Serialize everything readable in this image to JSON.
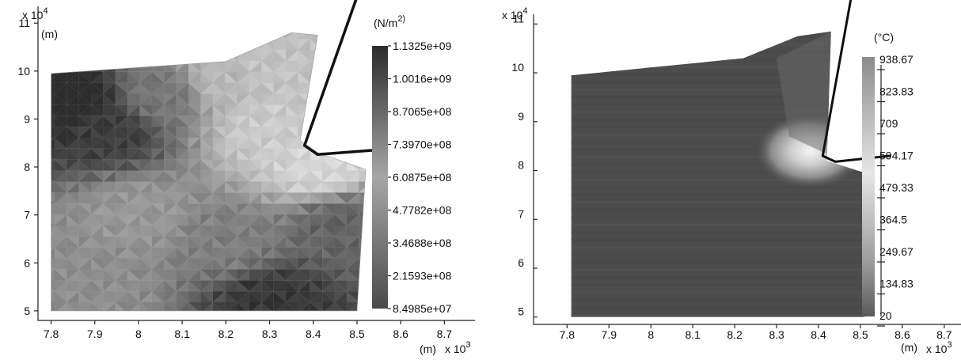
{
  "chart_data": [
    {
      "type": "heatmap",
      "panel": "left",
      "xlabel": "(m)",
      "x_multiplier": "x 10^3",
      "ylabel": "(m)",
      "y_multiplier": "x 10^4",
      "xlim": [
        7.77,
        8.77
      ],
      "ylim": [
        4.8,
        11.35
      ],
      "x_ticks": [
        "7.8",
        "7.9",
        "8",
        "8.1",
        "8.2",
        "8.3",
        "8.4",
        "8.5",
        "8.6",
        "8.7"
      ],
      "y_ticks": [
        "5",
        "6",
        "7",
        "8",
        "9",
        "10",
        "11"
      ],
      "colorbar": {
        "unit": "(N/m^2)",
        "min": 84985000,
        "max": 1132500000,
        "labels": [
          "1.1325e+09",
          "1.0016e+09",
          "8.7065e+08",
          "7.3970e+08",
          "6.0875e+08",
          "4.7782e+08",
          "3.4688e+08",
          "2.1593e+08",
          "8.4985e+07"
        ]
      },
      "workpiece_outline": [
        [
          7.8,
          5.0
        ],
        [
          8.5,
          5.0
        ],
        [
          8.52,
          7.95
        ],
        [
          8.41,
          8.3
        ],
        [
          8.37,
          8.55
        ],
        [
          8.41,
          10.75
        ],
        [
          8.35,
          10.8
        ],
        [
          8.2,
          10.2
        ],
        [
          7.8,
          9.95
        ]
      ],
      "tool_outline": [
        [
          8.5,
          11.55
        ],
        [
          8.38,
          8.45
        ],
        [
          8.41,
          8.26
        ],
        [
          8.54,
          8.35
        ]
      ],
      "field_samples": [
        {
          "x": 7.85,
          "y": 9.4,
          "v": 1.05
        },
        {
          "x": 7.93,
          "y": 8.8,
          "v": 0.92
        },
        {
          "x": 8.05,
          "y": 9.5,
          "v": 0.62
        },
        {
          "x": 8.2,
          "y": 9.8,
          "v": 0.28
        },
        {
          "x": 8.3,
          "y": 9.9,
          "v": 0.22
        },
        {
          "x": 8.3,
          "y": 8.8,
          "v": 0.18
        },
        {
          "x": 8.42,
          "y": 8.0,
          "v": 0.12
        },
        {
          "x": 8.0,
          "y": 7.0,
          "v": 0.45
        },
        {
          "x": 8.2,
          "y": 6.4,
          "v": 0.58
        },
        {
          "x": 8.3,
          "y": 5.2,
          "v": 0.95
        },
        {
          "x": 8.47,
          "y": 6.8,
          "v": 0.72
        },
        {
          "x": 7.9,
          "y": 5.6,
          "v": 0.5
        }
      ]
    },
    {
      "type": "heatmap",
      "panel": "right",
      "xlabel": "(m)",
      "x_multiplier": "x 10^3",
      "y_multiplier": "x 10^4",
      "xlim": [
        7.72,
        8.74
      ],
      "ylim": [
        4.85,
        11.2
      ],
      "x_ticks": [
        "7.8",
        "7.9",
        "8",
        "8.1",
        "8.2",
        "8.3",
        "8.4",
        "8.5",
        "8.6",
        "8.7"
      ],
      "y_ticks": [
        "5",
        "6",
        "7",
        "8",
        "9",
        "10",
        "11"
      ],
      "colorbar": {
        "unit": "(°C)",
        "min": 20,
        "max": 938.67,
        "labels": [
          "938.67",
          "823.83",
          "709",
          "594.17",
          "479.33",
          "364.5",
          "249.67",
          "134.83",
          "20"
        ]
      },
      "workpiece_outline": [
        [
          7.81,
          5.0
        ],
        [
          8.51,
          5.0
        ],
        [
          8.53,
          7.9
        ],
        [
          8.42,
          8.2
        ],
        [
          8.43,
          10.85
        ],
        [
          8.35,
          10.75
        ],
        [
          8.22,
          10.3
        ],
        [
          7.81,
          9.95
        ]
      ],
      "tool_outline": [
        [
          8.48,
          11.65
        ],
        [
          8.41,
          8.3
        ],
        [
          8.44,
          8.18
        ],
        [
          8.57,
          8.3
        ]
      ],
      "hot_zone_center": [
        8.36,
        8.4
      ],
      "hot_zone_peak": 938.67
    }
  ]
}
